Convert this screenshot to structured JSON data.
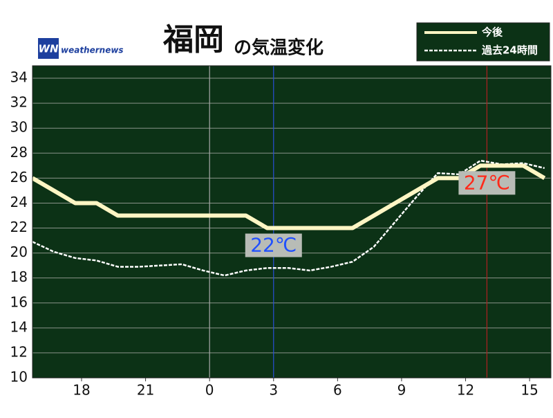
{
  "chart_data": {
    "type": "line",
    "title": "福岡",
    "subtitle": "の気温変化",
    "logo_text": "weathernews",
    "logo_mark": "WN",
    "x": [
      15.7,
      16.7,
      17.7,
      18.7,
      19.7,
      20.7,
      21.7,
      22.7,
      23.7,
      24.7,
      25.7,
      26.7,
      27.7,
      28.7,
      29.7,
      30.7,
      31.7,
      32.7,
      33.7,
      34.7,
      35.7,
      36.7,
      37.7,
      38.7,
      39.7
    ],
    "series": [
      {
        "name": "今後",
        "color": "#fff6c4",
        "style": "solid",
        "values": [
          26,
          25,
          24,
          24,
          23,
          23,
          23,
          23,
          23,
          23,
          23,
          22,
          22,
          22,
          22,
          22,
          23,
          24,
          25,
          26,
          26,
          27,
          27,
          27,
          26
        ]
      },
      {
        "name": "過去24時間",
        "color": "#ffffff",
        "style": "dashed",
        "values": [
          20.9,
          20.1,
          19.6,
          19.4,
          18.9,
          18.9,
          19.0,
          19.1,
          18.6,
          18.2,
          18.6,
          18.8,
          18.8,
          18.6,
          18.9,
          19.3,
          20.5,
          22.5,
          24.5,
          26.4,
          26.3,
          27.4,
          27.1,
          27.2,
          26.8
        ]
      }
    ],
    "xlim": [
      15.7,
      40
    ],
    "ylim": [
      10,
      35
    ],
    "xticks": [
      18,
      21,
      {
        "value": 24,
        "label": "0"
      },
      {
        "value": 27,
        "label": "3"
      },
      {
        "value": 30,
        "label": "6"
      },
      {
        "value": 33,
        "label": "9"
      },
      {
        "value": 36,
        "label": "12"
      },
      {
        "value": 39,
        "label": "15"
      }
    ],
    "yticks": [
      10,
      12,
      14,
      16,
      18,
      20,
      22,
      24,
      26,
      28,
      30,
      32,
      34
    ],
    "grid": true,
    "vlines": [
      {
        "x": 24,
        "color": "#aaaaaa"
      },
      {
        "x": 27,
        "color": "#2a4fd8"
      },
      {
        "x": 37,
        "color": "#b02020"
      }
    ],
    "annotations": [
      {
        "text": "22℃",
        "x": 27,
        "y": 22,
        "color": "#1f50ff"
      },
      {
        "text": "27℃",
        "x": 37,
        "y": 27,
        "color": "#ff2a1a"
      }
    ],
    "legend": "top-right",
    "background": "#0c3216"
  }
}
